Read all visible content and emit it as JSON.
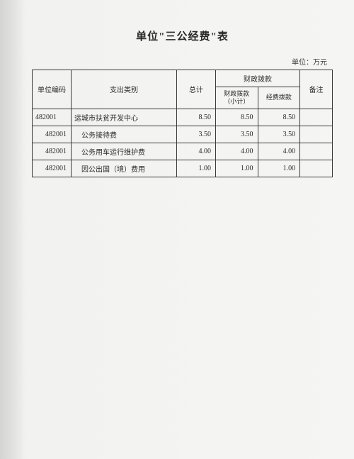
{
  "title": "单位\"三公经费\"表",
  "unit_label": "单位：万元",
  "headers": {
    "code": "单位编码",
    "category": "支出类别",
    "total": "总计",
    "fiscal_group": "财政拨款",
    "fiscal_sub": "财政拨款（小计）",
    "expense_sub": "经费拨款",
    "note": "备注"
  },
  "rows": [
    {
      "code": "482001",
      "category": "运城市扶贫开发中心",
      "total": "8.50",
      "fiscal_sub": "8.50",
      "expense_sub": "8.50",
      "note": "",
      "indent": false
    },
    {
      "code": "482001",
      "category": "公务接待费",
      "total": "3.50",
      "fiscal_sub": "3.50",
      "expense_sub": "3.50",
      "note": "",
      "indent": true
    },
    {
      "code": "482001",
      "category": "公务用车运行维护费",
      "total": "4.00",
      "fiscal_sub": "4.00",
      "expense_sub": "4.00",
      "note": "",
      "indent": true
    },
    {
      "code": "482001",
      "category": "因公出国（境）费用",
      "total": "1.00",
      "fiscal_sub": "1.00",
      "expense_sub": "1.00",
      "note": "",
      "indent": true
    }
  ],
  "table_style": {
    "border_color": "#3a3a3a",
    "text_color": "#2a2a2a",
    "background": "#f2f2f0",
    "font_size": 10,
    "title_font_size": 15
  }
}
